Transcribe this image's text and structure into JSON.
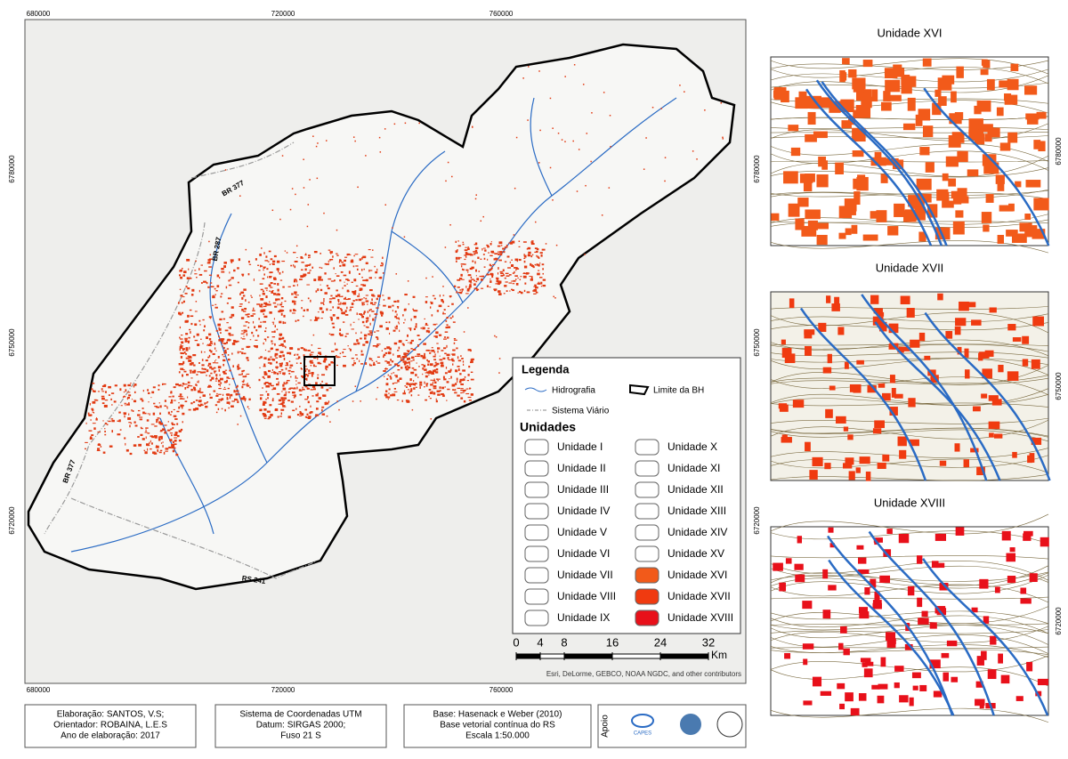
{
  "map": {
    "x_coords": [
      680000,
      720000,
      760000
    ],
    "y_coords": [
      6780000,
      6750000,
      6720000
    ],
    "roads": [
      "BR 377",
      "BR 287",
      "BR 377",
      "RS 241"
    ],
    "credits": "Esri, DeLorme, GEBCO, NOAA NGDC, and other contributors"
  },
  "legend": {
    "title": "Legenda",
    "hydro": "Hidrografia",
    "boundary": "Limite da BH",
    "roads": "Sistema Viário",
    "units_title": "Unidades",
    "units": [
      {
        "label": "Unidade I",
        "color": "#ffffff"
      },
      {
        "label": "Unidade II",
        "color": "#ffffff"
      },
      {
        "label": "Unidade III",
        "color": "#ffffff"
      },
      {
        "label": "Unidade IV",
        "color": "#ffffff"
      },
      {
        "label": "Unidade V",
        "color": "#ffffff"
      },
      {
        "label": "Unidade VI",
        "color": "#ffffff"
      },
      {
        "label": "Unidade VII",
        "color": "#ffffff"
      },
      {
        "label": "Unidade VIII",
        "color": "#ffffff"
      },
      {
        "label": "Unidade IX",
        "color": "#ffffff"
      },
      {
        "label": "Unidade X",
        "color": "#ffffff"
      },
      {
        "label": "Unidade XI",
        "color": "#ffffff"
      },
      {
        "label": "Unidade XII",
        "color": "#ffffff"
      },
      {
        "label": "Unidade XIII",
        "color": "#ffffff"
      },
      {
        "label": "Unidade XIV",
        "color": "#ffffff"
      },
      {
        "label": "Unidade XV",
        "color": "#ffffff"
      },
      {
        "label": "Unidade XVI",
        "color": "#f25a1a"
      },
      {
        "label": "Unidade XVII",
        "color": "#f03a10"
      },
      {
        "label": "Unidade XVIII",
        "color": "#e8101a"
      }
    ]
  },
  "scale": {
    "ticks": [
      0,
      4,
      8,
      16,
      24,
      32
    ],
    "unit": "Km"
  },
  "insets": [
    {
      "title": "Unidade XVI",
      "coord": 6780000,
      "color": "#f25a1a"
    },
    {
      "title": "Unidade XVII",
      "coord": 6750000,
      "color": "#f03a10"
    },
    {
      "title": "Unidade XVIII",
      "coord": 6720000,
      "color": "#e8101a"
    }
  ],
  "footer": {
    "credits": [
      "Elaboração: SANTOS, V.S;",
      "Orientador: ROBAINA, L.E.S",
      "Ano de elaboração: 2017"
    ],
    "crs": [
      "Sistema de Coordenadas UTM",
      "Datum: SIRGAS 2000;",
      "Fuso 21 S"
    ],
    "base": [
      "Base: Hasenack e Weber (2010)",
      "Base vetorial contínua do RS",
      "Escala 1:50.000"
    ],
    "support": "Apoio",
    "logo": "CAPES"
  }
}
